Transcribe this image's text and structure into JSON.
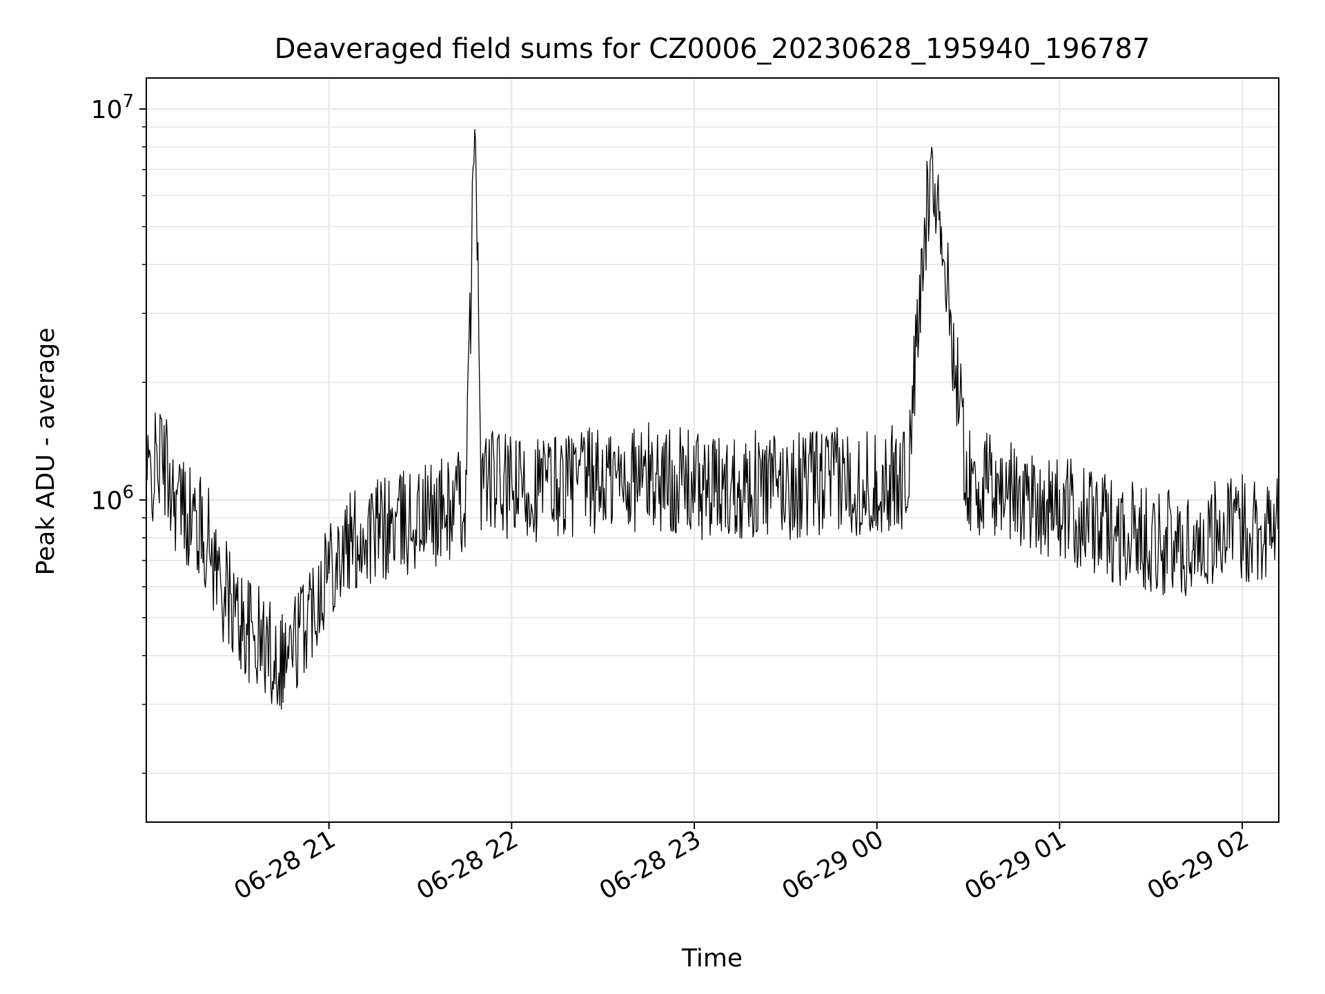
{
  "chart_data": {
    "type": "line",
    "title": "Deaveraged field sums for CZ0006_20230628_195940_196787",
    "xlabel": "Time",
    "ylabel": "Peak ADU - average",
    "y_scale": "log",
    "ylim": [
      150000,
      12000000
    ],
    "y_major_ticks": [
      {
        "value": 1000000,
        "base": "10",
        "exponent": "6"
      },
      {
        "value": 10000000,
        "base": "10",
        "exponent": "7"
      }
    ],
    "xlim": [
      "2023-06-28 20:00",
      "2023-06-29 02:12"
    ],
    "x_ticks": [
      {
        "value": "2023-06-28 21:00",
        "label": "06-28 21"
      },
      {
        "value": "2023-06-28 22:00",
        "label": "06-28 22"
      },
      {
        "value": "2023-06-28 23:00",
        "label": "06-28 23"
      },
      {
        "value": "2023-06-29 00:00",
        "label": "06-29 00"
      },
      {
        "value": "2023-06-29 01:00",
        "label": "06-29 01"
      },
      {
        "value": "2023-06-29 02:00",
        "label": "06-29 02"
      }
    ],
    "grid": true,
    "line_color": "#000000",
    "grid_color": "#e6e6e6",
    "series": [
      {
        "x": [
          "2023-06-28 20:00",
          "2023-06-28 20:05",
          "2023-06-28 20:10",
          "2023-06-28 20:15",
          "2023-06-28 20:20",
          "2023-06-28 20:25",
          "2023-06-28 20:30",
          "2023-06-28 20:35",
          "2023-06-28 20:40",
          "2023-06-28 20:42",
          "2023-06-28 20:45",
          "2023-06-28 20:48",
          "2023-06-28 20:50",
          "2023-06-28 20:55",
          "2023-06-28 21:00",
          "2023-06-28 21:10",
          "2023-06-28 21:20",
          "2023-06-28 21:25",
          "2023-06-28 21:30",
          "2023-06-28 21:40",
          "2023-06-28 21:45",
          "2023-06-28 21:48",
          "2023-06-28 21:50",
          "2023-06-28 21:55",
          "2023-06-28 22:00",
          "2023-06-28 22:15",
          "2023-06-28 22:30",
          "2023-06-28 22:45",
          "2023-06-28 23:00",
          "2023-06-28 23:05",
          "2023-06-28 23:15",
          "2023-06-28 23:30",
          "2023-06-28 23:45",
          "2023-06-29 00:00",
          "2023-06-29 00:10",
          "2023-06-29 00:18",
          "2023-06-29 00:30",
          "2023-06-29 00:45",
          "2023-06-29 01:00",
          "2023-06-29 01:15",
          "2023-06-29 01:30",
          "2023-06-29 01:40",
          "2023-06-29 01:45",
          "2023-06-29 01:50",
          "2023-06-29 02:00",
          "2023-06-29 02:12"
        ],
        "y": [
          1100000,
          1300000,
          1000000,
          900000,
          800000,
          600000,
          500000,
          450000,
          420000,
          400000,
          400000,
          420000,
          450000,
          550000,
          700000,
          800000,
          850000,
          870000,
          900000,
          950000,
          1000000,
          9700000,
          1150000,
          1100000,
          1050000,
          1100000,
          1120000,
          1150000,
          1100000,
          1050000,
          1100000,
          1080000,
          1120000,
          1100000,
          1150000,
          8000000,
          1100000,
          1050000,
          950000,
          850000,
          800000,
          750000,
          780000,
          820000,
          850000,
          850000
        ]
      }
    ]
  }
}
